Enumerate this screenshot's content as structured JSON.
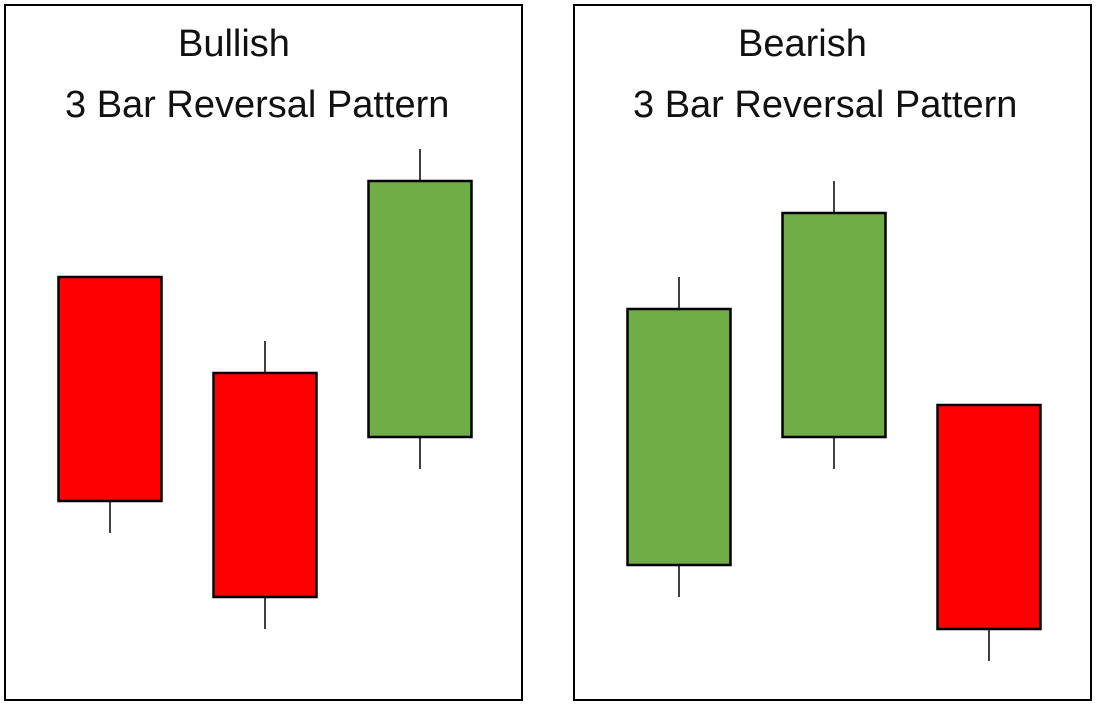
{
  "colors": {
    "bear": "#ff0000",
    "bull": "#70ad47",
    "outline": "#000000",
    "background": "#ffffff"
  },
  "panels": [
    {
      "title_line1": "Bullish",
      "title_line2": "3 Bar Reversal Pattern",
      "chart_data": {
        "type": "candlestick",
        "title": "Bullish 3 Bar Reversal Pattern",
        "candles": [
          {
            "direction": "bearish",
            "open": 68,
            "close": 40,
            "high": 68,
            "low": 36
          },
          {
            "direction": "bearish",
            "open": 56,
            "close": 28,
            "high": 60,
            "low": 24
          },
          {
            "direction": "bullish",
            "open": 48,
            "close": 80,
            "high": 84,
            "low": 44
          }
        ],
        "ylim": [
          0,
          100
        ],
        "grid": false,
        "axes_visible": false
      }
    },
    {
      "title_line1": "Bearish",
      "title_line2": "3 Bar Reversal Pattern",
      "chart_data": {
        "type": "candlestick",
        "title": "Bearish 3 Bar Reversal Pattern",
        "candles": [
          {
            "direction": "bullish",
            "open": 32,
            "close": 64,
            "high": 68,
            "low": 28
          },
          {
            "direction": "bullish",
            "open": 48,
            "close": 76,
            "high": 80,
            "low": 44
          },
          {
            "direction": "bearish",
            "open": 52,
            "close": 24,
            "high": 52,
            "low": 20
          }
        ],
        "ylim": [
          0,
          100
        ],
        "grid": false,
        "axes_visible": false
      }
    }
  ]
}
